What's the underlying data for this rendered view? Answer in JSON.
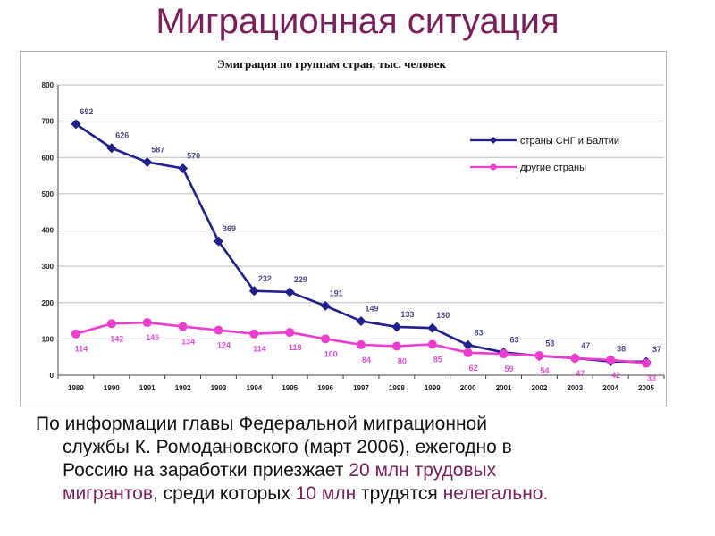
{
  "slide": {
    "title": "Миграционная ситуация",
    "text": {
      "line1": "По информации главы Федеральной миграционной",
      "line2": "службы К. Ромодановского (март 2006), ежегодно в",
      "line3a": "Россию на заработки приезжает ",
      "line3b": "20 млн трудовых",
      "line4a": "мигрантов",
      "line4b": ", среди которых ",
      "line4c": "10 млн",
      "line4d": " трудятся ",
      "line4e": "нелегально."
    }
  },
  "colors": {
    "title": "#7b1e5b",
    "highlight": "#7b1e5b",
    "series1": "#1f1f8f",
    "series2": "#ee3bd0",
    "grid": "#bcbcbc"
  },
  "chart_data": {
    "type": "line",
    "title": "Эмиграция по группам стран, тыс. человек",
    "xlabel": "",
    "ylabel": "",
    "ylim": [
      0,
      800
    ],
    "yticks": [
      "0",
      "100",
      "200",
      "300",
      "400",
      "500",
      "600",
      "700",
      "800"
    ],
    "grid": true,
    "legend_position": "right",
    "categories": [
      "1989",
      "1990",
      "1991",
      "1992",
      "1993",
      "1994",
      "1995",
      "1996",
      "1997",
      "1998",
      "1999",
      "2000",
      "2001",
      "2002",
      "2003",
      "2004",
      "2005"
    ],
    "series": [
      {
        "name": "страны СНГ и Балтии",
        "color": "#1f1f8f",
        "marker": "diamond",
        "values": [
          692,
          626,
          587,
          570,
          369,
          232,
          229,
          191,
          149,
          133,
          130,
          83,
          63,
          53,
          47,
          38,
          37
        ]
      },
      {
        "name": "другие страны",
        "color": "#ee3bd0",
        "marker": "circle",
        "values": [
          114,
          142,
          145,
          134,
          124,
          114,
          118,
          100,
          84,
          80,
          85,
          62,
          59,
          54,
          47,
          42,
          33
        ]
      }
    ]
  }
}
